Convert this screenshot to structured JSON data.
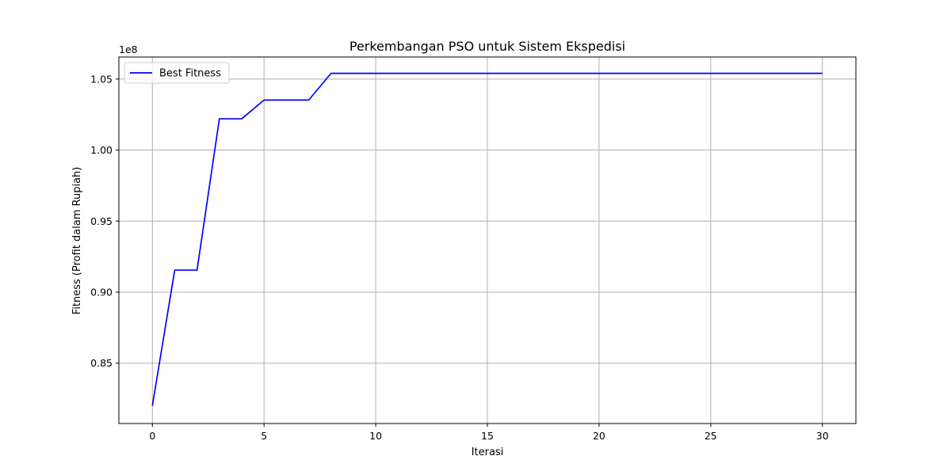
{
  "chart_data": {
    "type": "line",
    "title": "Perkembangan PSO untuk Sistem Ekspedisi",
    "xlabel": "Iterasi",
    "ylabel": "Fitness (Profit dalam Rupiah)",
    "y_offset_label": "1e8",
    "xlim": [
      -1.5,
      31.5
    ],
    "ylim": [
      0.8075,
      1.0655
    ],
    "x_ticks": [
      0,
      5,
      10,
      15,
      20,
      25,
      30
    ],
    "x_tick_labels": [
      "0",
      "5",
      "10",
      "15",
      "20",
      "25",
      "30"
    ],
    "y_ticks": [
      0.85,
      0.9,
      0.95,
      1.0,
      1.05
    ],
    "y_tick_labels": [
      "0.85",
      "0.90",
      "0.95",
      "1.00",
      "1.05"
    ],
    "grid": true,
    "legend_position": "upper-left",
    "series": [
      {
        "name": "Best Fitness",
        "color": "#0000ff",
        "x": [
          0,
          1,
          2,
          3,
          4,
          5,
          6,
          7,
          8,
          9,
          10,
          11,
          12,
          13,
          14,
          15,
          16,
          17,
          18,
          19,
          20,
          21,
          22,
          23,
          24,
          25,
          26,
          27,
          28,
          29,
          30
        ],
        "values": [
          0.82,
          0.9155,
          0.9155,
          1.022,
          1.022,
          1.0352,
          1.0352,
          1.0352,
          1.054,
          1.054,
          1.054,
          1.054,
          1.054,
          1.054,
          1.054,
          1.054,
          1.054,
          1.054,
          1.054,
          1.054,
          1.054,
          1.054,
          1.054,
          1.054,
          1.054,
          1.054,
          1.054,
          1.054,
          1.054,
          1.054,
          1.054
        ]
      }
    ]
  }
}
